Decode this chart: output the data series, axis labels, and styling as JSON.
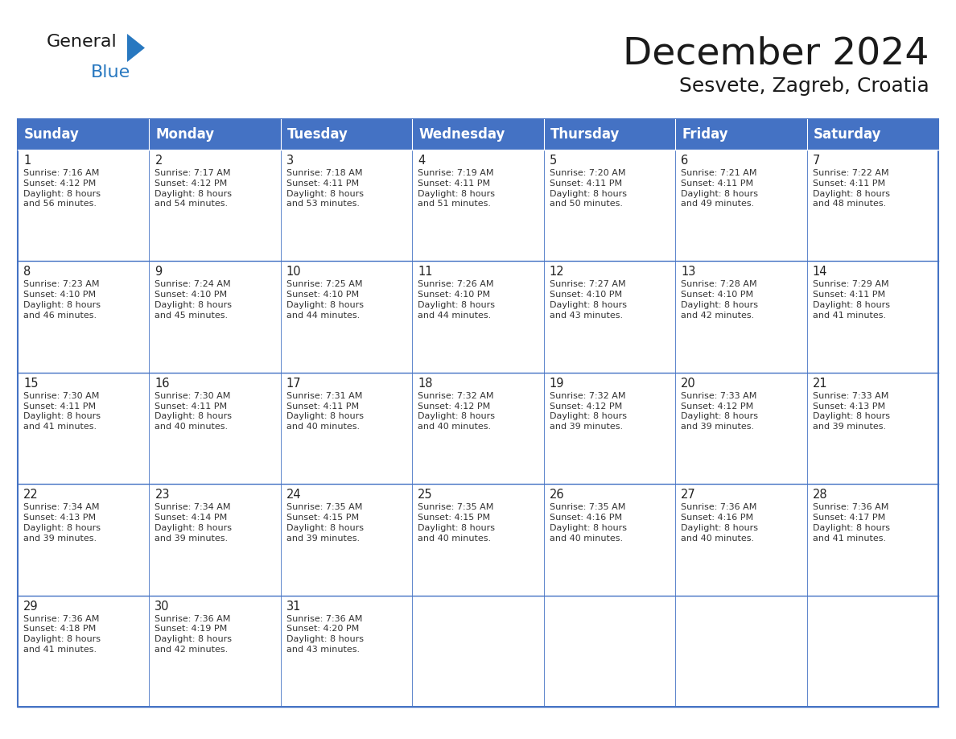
{
  "title": "December 2024",
  "subtitle": "Sesvete, Zagreb, Croatia",
  "header_bg": "#4472C4",
  "header_text_color": "#FFFFFF",
  "header_font_size": 12,
  "day_number_font_size": 10.5,
  "cell_text_font_size": 8.0,
  "title_font_size": 34,
  "subtitle_font_size": 18,
  "days_of_week": [
    "Sunday",
    "Monday",
    "Tuesday",
    "Wednesday",
    "Thursday",
    "Friday",
    "Saturday"
  ],
  "weeks": [
    [
      {
        "day": 1,
        "sunrise": "7:16 AM",
        "sunset": "4:12 PM",
        "daylight_h": "8 hours",
        "daylight_m": "and 56 minutes."
      },
      {
        "day": 2,
        "sunrise": "7:17 AM",
        "sunset": "4:12 PM",
        "daylight_h": "8 hours",
        "daylight_m": "and 54 minutes."
      },
      {
        "day": 3,
        "sunrise": "7:18 AM",
        "sunset": "4:11 PM",
        "daylight_h": "8 hours",
        "daylight_m": "and 53 minutes."
      },
      {
        "day": 4,
        "sunrise": "7:19 AM",
        "sunset": "4:11 PM",
        "daylight_h": "8 hours",
        "daylight_m": "and 51 minutes."
      },
      {
        "day": 5,
        "sunrise": "7:20 AM",
        "sunset": "4:11 PM",
        "daylight_h": "8 hours",
        "daylight_m": "and 50 minutes."
      },
      {
        "day": 6,
        "sunrise": "7:21 AM",
        "sunset": "4:11 PM",
        "daylight_h": "8 hours",
        "daylight_m": "and 49 minutes."
      },
      {
        "day": 7,
        "sunrise": "7:22 AM",
        "sunset": "4:11 PM",
        "daylight_h": "8 hours",
        "daylight_m": "and 48 minutes."
      }
    ],
    [
      {
        "day": 8,
        "sunrise": "7:23 AM",
        "sunset": "4:10 PM",
        "daylight_h": "8 hours",
        "daylight_m": "and 46 minutes."
      },
      {
        "day": 9,
        "sunrise": "7:24 AM",
        "sunset": "4:10 PM",
        "daylight_h": "8 hours",
        "daylight_m": "and 45 minutes."
      },
      {
        "day": 10,
        "sunrise": "7:25 AM",
        "sunset": "4:10 PM",
        "daylight_h": "8 hours",
        "daylight_m": "and 44 minutes."
      },
      {
        "day": 11,
        "sunrise": "7:26 AM",
        "sunset": "4:10 PM",
        "daylight_h": "8 hours",
        "daylight_m": "and 44 minutes."
      },
      {
        "day": 12,
        "sunrise": "7:27 AM",
        "sunset": "4:10 PM",
        "daylight_h": "8 hours",
        "daylight_m": "and 43 minutes."
      },
      {
        "day": 13,
        "sunrise": "7:28 AM",
        "sunset": "4:10 PM",
        "daylight_h": "8 hours",
        "daylight_m": "and 42 minutes."
      },
      {
        "day": 14,
        "sunrise": "7:29 AM",
        "sunset": "4:11 PM",
        "daylight_h": "8 hours",
        "daylight_m": "and 41 minutes."
      }
    ],
    [
      {
        "day": 15,
        "sunrise": "7:30 AM",
        "sunset": "4:11 PM",
        "daylight_h": "8 hours",
        "daylight_m": "and 41 minutes."
      },
      {
        "day": 16,
        "sunrise": "7:30 AM",
        "sunset": "4:11 PM",
        "daylight_h": "8 hours",
        "daylight_m": "and 40 minutes."
      },
      {
        "day": 17,
        "sunrise": "7:31 AM",
        "sunset": "4:11 PM",
        "daylight_h": "8 hours",
        "daylight_m": "and 40 minutes."
      },
      {
        "day": 18,
        "sunrise": "7:32 AM",
        "sunset": "4:12 PM",
        "daylight_h": "8 hours",
        "daylight_m": "and 40 minutes."
      },
      {
        "day": 19,
        "sunrise": "7:32 AM",
        "sunset": "4:12 PM",
        "daylight_h": "8 hours",
        "daylight_m": "and 39 minutes."
      },
      {
        "day": 20,
        "sunrise": "7:33 AM",
        "sunset": "4:12 PM",
        "daylight_h": "8 hours",
        "daylight_m": "and 39 minutes."
      },
      {
        "day": 21,
        "sunrise": "7:33 AM",
        "sunset": "4:13 PM",
        "daylight_h": "8 hours",
        "daylight_m": "and 39 minutes."
      }
    ],
    [
      {
        "day": 22,
        "sunrise": "7:34 AM",
        "sunset": "4:13 PM",
        "daylight_h": "8 hours",
        "daylight_m": "and 39 minutes."
      },
      {
        "day": 23,
        "sunrise": "7:34 AM",
        "sunset": "4:14 PM",
        "daylight_h": "8 hours",
        "daylight_m": "and 39 minutes."
      },
      {
        "day": 24,
        "sunrise": "7:35 AM",
        "sunset": "4:15 PM",
        "daylight_h": "8 hours",
        "daylight_m": "and 39 minutes."
      },
      {
        "day": 25,
        "sunrise": "7:35 AM",
        "sunset": "4:15 PM",
        "daylight_h": "8 hours",
        "daylight_m": "and 40 minutes."
      },
      {
        "day": 26,
        "sunrise": "7:35 AM",
        "sunset": "4:16 PM",
        "daylight_h": "8 hours",
        "daylight_m": "and 40 minutes."
      },
      {
        "day": 27,
        "sunrise": "7:36 AM",
        "sunset": "4:16 PM",
        "daylight_h": "8 hours",
        "daylight_m": "and 40 minutes."
      },
      {
        "day": 28,
        "sunrise": "7:36 AM",
        "sunset": "4:17 PM",
        "daylight_h": "8 hours",
        "daylight_m": "and 41 minutes."
      }
    ],
    [
      {
        "day": 29,
        "sunrise": "7:36 AM",
        "sunset": "4:18 PM",
        "daylight_h": "8 hours",
        "daylight_m": "and 41 minutes."
      },
      {
        "day": 30,
        "sunrise": "7:36 AM",
        "sunset": "4:19 PM",
        "daylight_h": "8 hours",
        "daylight_m": "and 42 minutes."
      },
      {
        "day": 31,
        "sunrise": "7:36 AM",
        "sunset": "4:20 PM",
        "daylight_h": "8 hours",
        "daylight_m": "and 43 minutes."
      },
      null,
      null,
      null,
      null
    ]
  ],
  "logo_color_general": "#1a1a1a",
  "logo_color_blue": "#2878C0",
  "logo_triangle_color": "#2878C0",
  "grid_color": "#4472C4",
  "grid_color_inner": "#8AADDA",
  "bg_color": "#FFFFFF",
  "cell_bg_color": "#FFFFFF"
}
